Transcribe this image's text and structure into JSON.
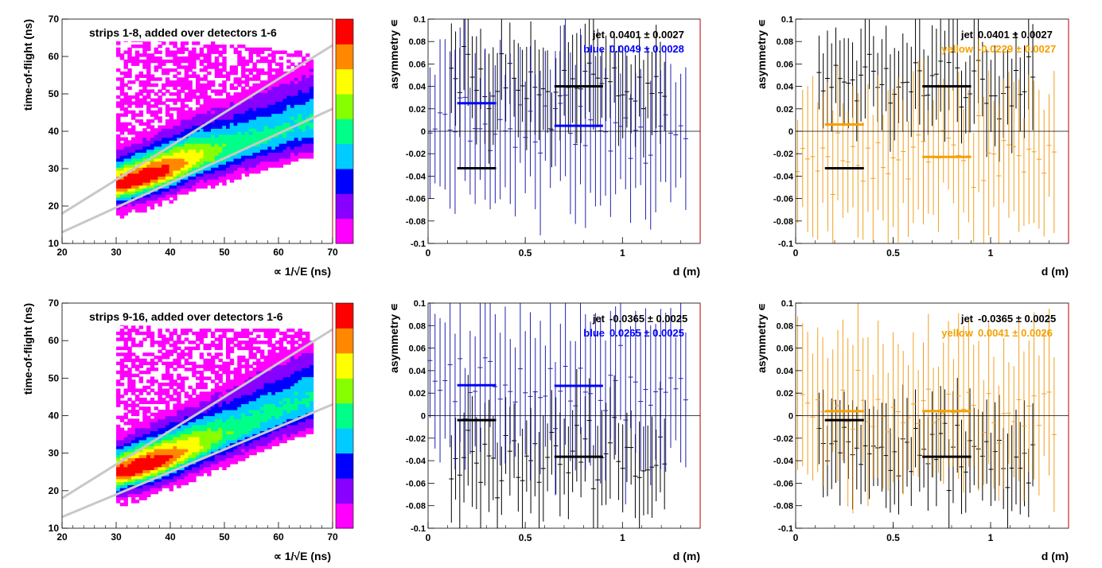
{
  "chart_data": [
    {
      "type": "heatmap",
      "label": "strips 1-8, added over detectors 1-6",
      "xlabel": "∝ 1/√E (ns)",
      "ylabel": "time-of-flight (ns)",
      "xlim": [
        20,
        70
      ],
      "ylim": [
        10,
        70
      ],
      "xticks": [
        "20",
        "30",
        "40",
        "50",
        "60",
        "70"
      ],
      "yticks": [
        "10",
        "20",
        "30",
        "40",
        "50",
        "60",
        "70"
      ],
      "colorscale": [
        "#ff00ff",
        "#8800ff",
        "#0000ff",
        "#00ccff",
        "#00ff88",
        "#88ff00",
        "#ffff00",
        "#ff8800",
        "#ff0000"
      ],
      "ridge": [
        [
          30,
          25.5
        ],
        [
          35,
          27.5
        ],
        [
          40,
          30
        ],
        [
          45,
          33
        ],
        [
          50,
          35
        ],
        [
          55,
          37.5
        ],
        [
          60,
          39.5
        ],
        [
          65,
          42
        ]
      ],
      "cuts": [
        [
          [
            20,
            18
          ],
          [
            70,
            63
          ]
        ],
        [
          [
            20,
            13
          ],
          [
            70,
            46
          ]
        ]
      ]
    },
    {
      "type": "scatter",
      "xlabel": "d (m)",
      "ylabel": "asymmetry ∊",
      "xlim": [
        0,
        1.4
      ],
      "ylim": [
        -0.1,
        0.1
      ],
      "xticks": [
        "0",
        "0.5",
        "1"
      ],
      "yticks": [
        "-0.1",
        "-0.08",
        "-0.06",
        "-0.04",
        "-0.02",
        "0",
        "0.02",
        "0.04",
        "0.06",
        "0.08",
        "0.1"
      ],
      "legend": [
        {
          "label": "jet",
          "value": "0.0401 ± 0.0027",
          "color": "#000000"
        },
        {
          "label": "blue",
          "value": "0.0049 ± 0.0028",
          "color": "#0000ff"
        }
      ],
      "series": [
        {
          "name": "jet",
          "color": "#000000",
          "x_start": 0.12,
          "x_step": 0.0215,
          "center": 0.0401,
          "error": 0.04,
          "segments": [
            [
              0.15,
              0.35,
              -0.033
            ],
            [
              0.65,
              0.9,
              0.0401
            ]
          ]
        },
        {
          "name": "blue",
          "color": "#2121b0",
          "x_start": 0.01,
          "x_step": 0.0258,
          "center": 0.0049,
          "error": 0.06,
          "segments": [
            [
              0.15,
              0.35,
              0.025
            ],
            [
              0.65,
              0.9,
              0.0049
            ]
          ]
        }
      ]
    },
    {
      "type": "scatter",
      "xlabel": "d (m)",
      "ylabel": "asymmetry ∊",
      "xlim": [
        0,
        1.4
      ],
      "ylim": [
        -0.1,
        0.1
      ],
      "xticks": [
        "0",
        "0.5",
        "1"
      ],
      "yticks": [
        "-0.1",
        "-0.08",
        "-0.06",
        "-0.04",
        "-0.02",
        "0",
        "0.02",
        "0.04",
        "0.06",
        "0.08",
        "0.1"
      ],
      "legend": [
        {
          "label": "jet",
          "value": "0.0401 ± 0.0027",
          "color": "#000000"
        },
        {
          "label": "yellow",
          "value": "-0.0229 ± 0.0027",
          "color": "#f5a000"
        }
      ],
      "series": [
        {
          "name": "jet",
          "color": "#000000",
          "x_start": 0.12,
          "x_step": 0.0215,
          "center": 0.0401,
          "error": 0.04,
          "segments": [
            [
              0.15,
              0.35,
              -0.033
            ],
            [
              0.65,
              0.9,
              0.0401
            ]
          ]
        },
        {
          "name": "yellow",
          "color": "#f0a020",
          "x_start": 0.01,
          "x_step": 0.0258,
          "center": -0.0229,
          "error": 0.06,
          "segments": [
            [
              0.15,
              0.35,
              0.006
            ],
            [
              0.65,
              0.9,
              -0.0229
            ]
          ]
        }
      ]
    },
    {
      "type": "heatmap",
      "label": "strips 9-16, added over detectors 1-6",
      "xlabel": "∝ 1/√E (ns)",
      "ylabel": "time-of-flight (ns)",
      "xlim": [
        20,
        70
      ],
      "ylim": [
        10,
        70
      ],
      "xticks": [
        "20",
        "30",
        "40",
        "50",
        "60",
        "70"
      ],
      "yticks": [
        "10",
        "20",
        "30",
        "40",
        "50",
        "60",
        "70"
      ],
      "colorscale": [
        "#ff00ff",
        "#8800ff",
        "#0000ff",
        "#00ccff",
        "#00ff88",
        "#88ff00",
        "#ffff00",
        "#ff8800",
        "#ff0000"
      ],
      "ridge": [
        [
          30,
          24.5
        ],
        [
          35,
          26.5
        ],
        [
          40,
          29
        ],
        [
          45,
          32
        ],
        [
          50,
          35
        ],
        [
          55,
          38
        ],
        [
          60,
          41
        ],
        [
          65,
          44
        ]
      ],
      "cuts": [
        [
          [
            20,
            18
          ],
          [
            70,
            63
          ]
        ],
        [
          [
            20,
            13
          ],
          [
            70,
            43
          ]
        ]
      ]
    },
    {
      "type": "scatter",
      "xlabel": "d (m)",
      "ylabel": "asymmetry ∊",
      "xlim": [
        0,
        1.4
      ],
      "ylim": [
        -0.1,
        0.1
      ],
      "xticks": [
        "0",
        "0.5",
        "1"
      ],
      "yticks": [
        "-0.1",
        "-0.08",
        "-0.06",
        "-0.04",
        "-0.02",
        "0",
        "0.02",
        "0.04",
        "0.06",
        "0.08",
        "0.1"
      ],
      "legend": [
        {
          "label": "jet",
          "value": "-0.0365 ± 0.0025",
          "color": "#000000"
        },
        {
          "label": "blue",
          "value": "0.0265 ± 0.0025",
          "color": "#0000ff"
        }
      ],
      "series": [
        {
          "name": "jet",
          "color": "#000000",
          "x_start": 0.12,
          "x_step": 0.0215,
          "center": -0.0365,
          "error": 0.04,
          "segments": [
            [
              0.15,
              0.35,
              -0.004
            ],
            [
              0.65,
              0.9,
              -0.0365
            ]
          ]
        },
        {
          "name": "blue",
          "color": "#2121b0",
          "x_start": 0.01,
          "x_step": 0.0258,
          "center": 0.0265,
          "error": 0.06,
          "segments": [
            [
              0.15,
              0.35,
              0.027
            ],
            [
              0.65,
              0.9,
              0.0265
            ]
          ]
        }
      ]
    },
    {
      "type": "scatter",
      "xlabel": "d (m)",
      "ylabel": "asymmetry ∊",
      "xlim": [
        0,
        1.4
      ],
      "ylim": [
        -0.1,
        0.1
      ],
      "xticks": [
        "0",
        "0.5",
        "1"
      ],
      "yticks": [
        "-0.1",
        "-0.08",
        "-0.06",
        "-0.04",
        "-0.02",
        "0",
        "0.02",
        "0.04",
        "0.06",
        "0.08",
        "0.1"
      ],
      "legend": [
        {
          "label": "jet",
          "value": "-0.0365 ± 0.0025",
          "color": "#000000"
        },
        {
          "label": "yellow",
          "value": "0.0041 ± 0.0026",
          "color": "#f5a000"
        }
      ],
      "series": [
        {
          "name": "jet",
          "color": "#000000",
          "x_start": 0.12,
          "x_step": 0.0215,
          "center": -0.0365,
          "error": 0.04,
          "segments": [
            [
              0.15,
              0.35,
              -0.004
            ],
            [
              0.65,
              0.9,
              -0.0365
            ]
          ]
        },
        {
          "name": "yellow",
          "color": "#f0a020",
          "x_start": 0.01,
          "x_step": 0.0258,
          "center": 0.0041,
          "error": 0.06,
          "segments": [
            [
              0.15,
              0.35,
              0.004
            ],
            [
              0.65,
              0.9,
              0.0041
            ]
          ]
        }
      ]
    }
  ]
}
